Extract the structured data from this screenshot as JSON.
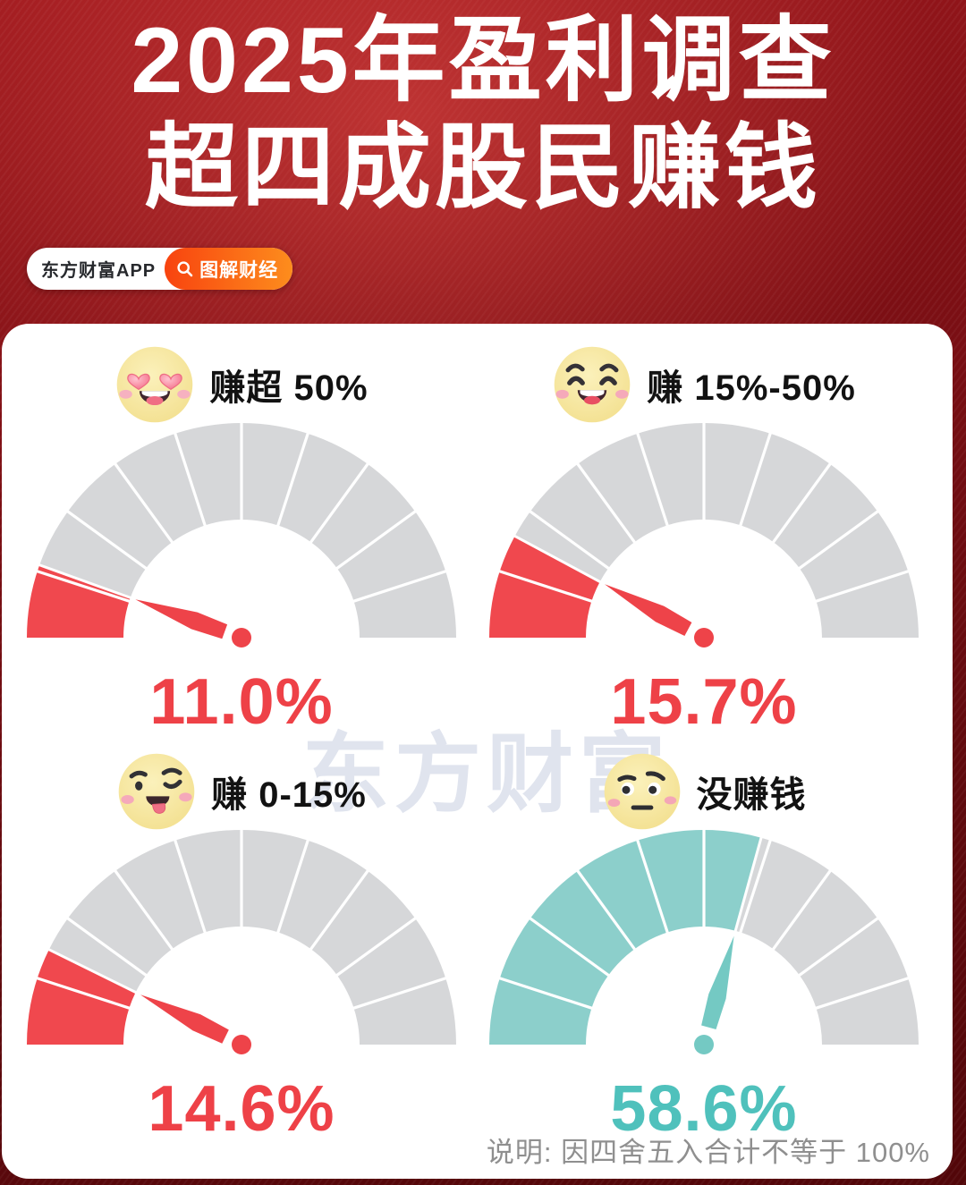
{
  "header": {
    "title_line1": "2025年盈利调查",
    "title_line2": "超四成股民赚钱",
    "app_label": "东方财富APP",
    "tag_label": "图解财经"
  },
  "watermark": "东方财富",
  "note": "说明: 因四舍五入合计不等于 100%",
  "colors": {
    "red": "#f0484e",
    "red_needle": "#ee4349",
    "red_text": "#ee4147",
    "teal": "#8ccfcb",
    "teal_needle": "#74c9c3",
    "teal_text": "#4fc1bc",
    "gray": "#d6d7d9",
    "separator": "#ffffff"
  },
  "chart_data": {
    "type": "gauge",
    "title": "2025年盈利调查",
    "subtitle": "超四成股民赚钱",
    "unit": "%",
    "gauge_range": [
      0,
      100
    ],
    "segments_per_gauge": 10,
    "gauges": [
      {
        "label": "赚超 50%",
        "emoji": "heart-eyes",
        "value": 11.0,
        "display": "11.0%",
        "color": "red"
      },
      {
        "label": "赚 15%-50%",
        "emoji": "smiling-closed-eyes",
        "value": 15.7,
        "display": "15.7%",
        "color": "red"
      },
      {
        "label": "赚 0-15%",
        "emoji": "wink-tongue",
        "value": 14.6,
        "display": "14.6%",
        "color": "red"
      },
      {
        "label": "没赚钱",
        "emoji": "skeptical",
        "value": 58.6,
        "display": "58.6%",
        "color": "teal"
      }
    ]
  }
}
